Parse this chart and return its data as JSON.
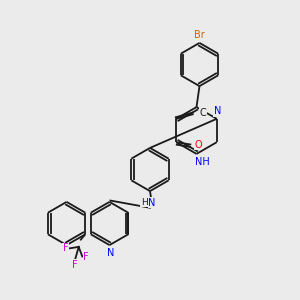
{
  "background_color": "#ebebeb",
  "bond_color": "#1a1a1a",
  "atom_colors": {
    "N": "#0000ff",
    "O": "#ff0000",
    "Br": "#cc6600",
    "F": "#cc00cc",
    "C": "#1a1a1a"
  },
  "title": ""
}
